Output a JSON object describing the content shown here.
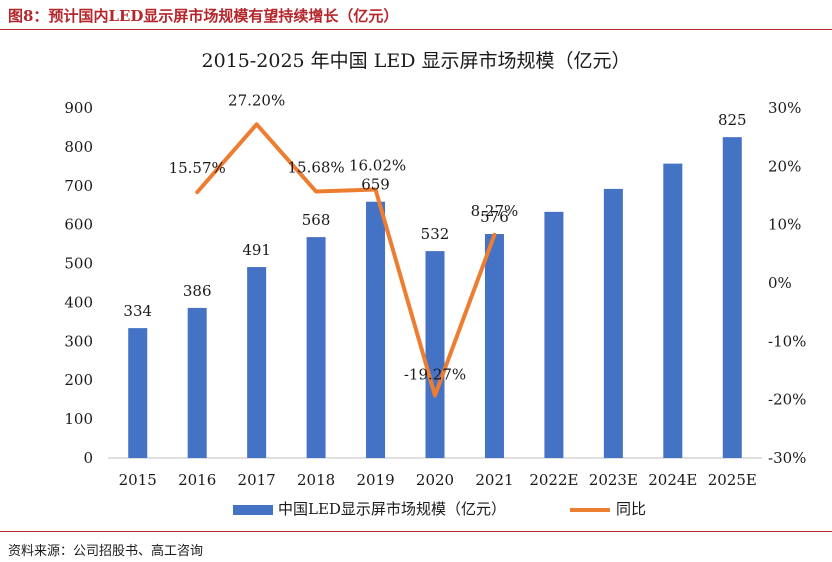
{
  "figure": {
    "label": "图8：预计国内LED显示屏市场规模有望持续增长（亿元）",
    "source": "资料来源：公司招股书、高工咨询"
  },
  "colors": {
    "bar": "#4472c4",
    "line": "#ed7d31",
    "accent": "#b5262b"
  },
  "chart_data": {
    "type": "bar",
    "title": "2015-2025 年中国 LED 显示屏市场规模（亿元）",
    "categories": [
      "2015",
      "2016",
      "2017",
      "2018",
      "2019",
      "2020",
      "2021",
      "2022E",
      "2023E",
      "2024E",
      "2025E"
    ],
    "series": [
      {
        "name": "中国LED显示屏市场规模（亿元）",
        "type": "bar",
        "axis": "left",
        "values": [
          334,
          386,
          491,
          568,
          659,
          532,
          576,
          633,
          692,
          757,
          825
        ],
        "labels": [
          "334",
          "386",
          "491",
          "568",
          "659",
          "532",
          "576",
          "",
          "",
          "",
          "825"
        ]
      },
      {
        "name": "同比",
        "type": "line",
        "axis": "right",
        "values": [
          null,
          15.57,
          27.2,
          15.68,
          16.02,
          -19.27,
          8.27,
          null,
          null,
          null,
          null
        ],
        "labels": [
          "",
          "15.57%",
          "27.20%",
          "15.68%",
          "16.02%",
          "-19.27%",
          "8.27%",
          "",
          "",
          "",
          ""
        ]
      }
    ],
    "y_left": {
      "min": 0,
      "max": 900,
      "step": 100,
      "ticks": [
        "0",
        "100",
        "200",
        "300",
        "400",
        "500",
        "600",
        "700",
        "800",
        "900"
      ]
    },
    "y_right": {
      "min": -30,
      "max": 30,
      "step": 10,
      "ticks": [
        "-30%",
        "-20%",
        "-10%",
        "0%",
        "10%",
        "20%",
        "30%"
      ]
    },
    "grid": false,
    "legend": {
      "position": "bottom",
      "items": [
        "中国LED显示屏市场规模（亿元）",
        "同比"
      ]
    }
  }
}
